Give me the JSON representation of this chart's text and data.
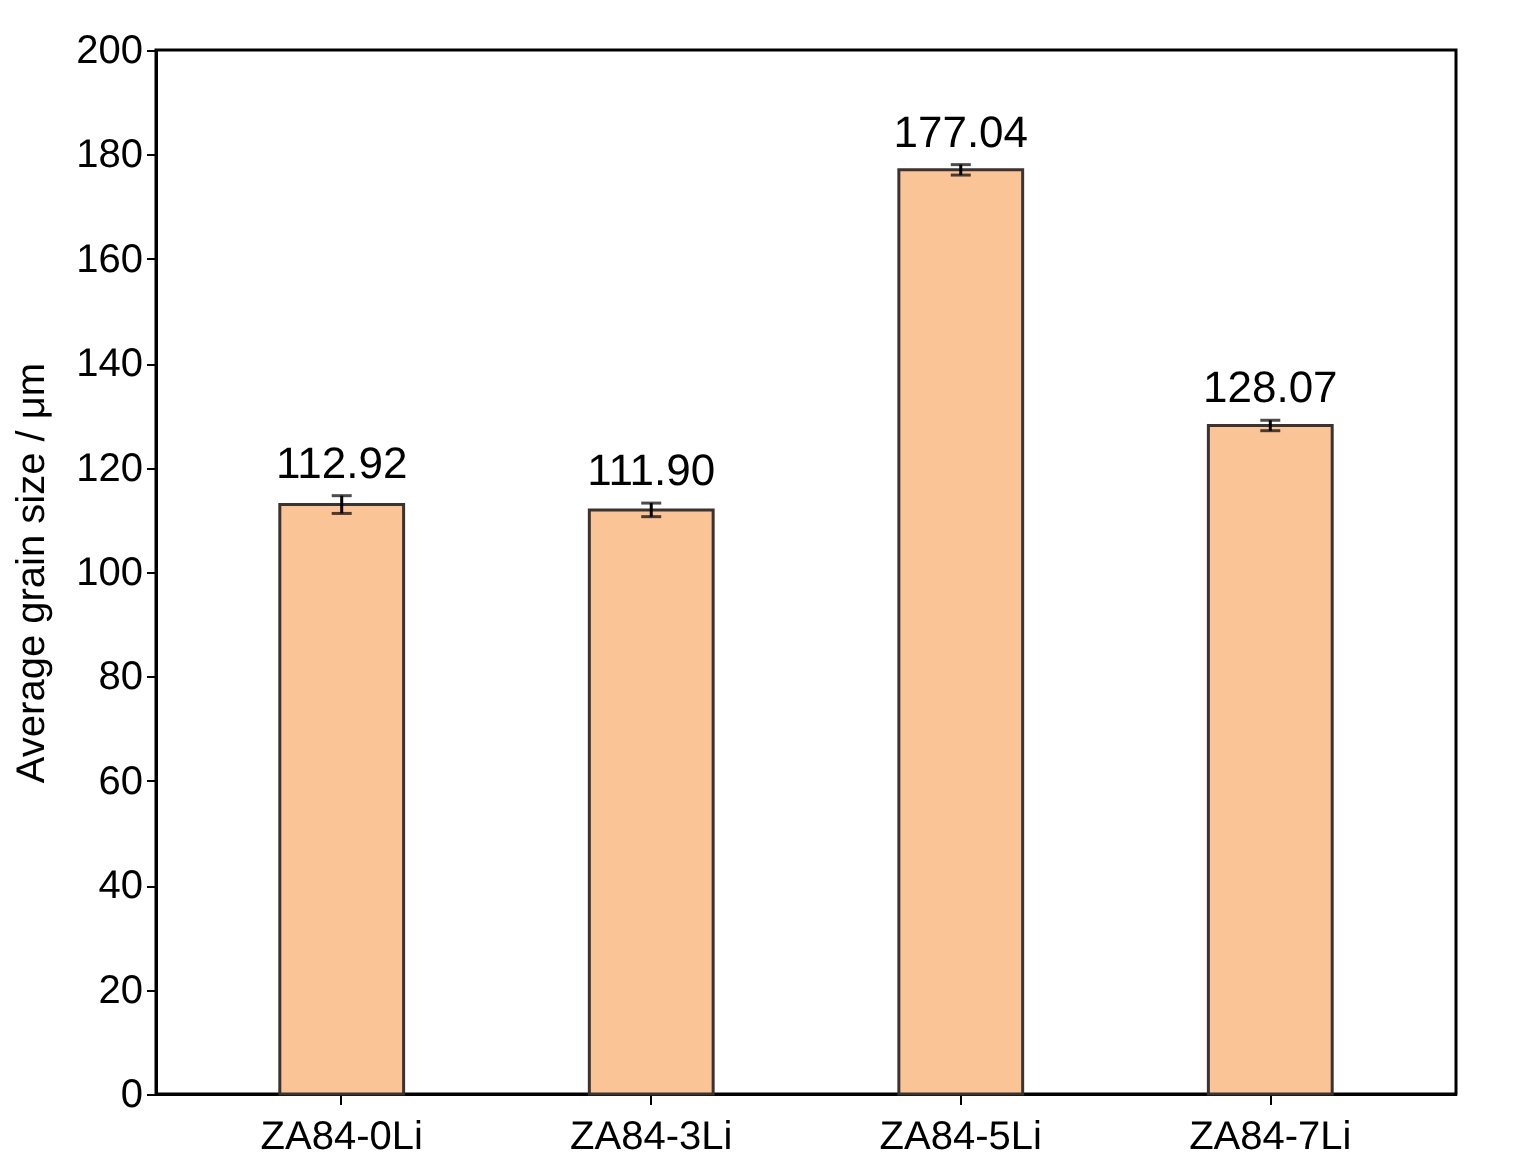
{
  "chart_data": {
    "type": "bar",
    "ylabel": "Average grain size / μm",
    "categories": [
      "ZA84-0Li",
      "ZA84-3Li",
      "ZA84-5Li",
      "ZA84-7Li"
    ],
    "values": [
      112.92,
      111.9,
      177.04,
      128.07
    ],
    "value_labels": [
      "112.92",
      "111.90",
      "177.04",
      "128.07"
    ],
    "errors": [
      1.7,
      1.3,
      1.0,
      1.0
    ],
    "color": "#fbc497",
    "ylim": [
      0,
      200
    ],
    "yticks": [
      0,
      20,
      40,
      60,
      80,
      100,
      120,
      140,
      160,
      180,
      200
    ],
    "grid": false
  }
}
